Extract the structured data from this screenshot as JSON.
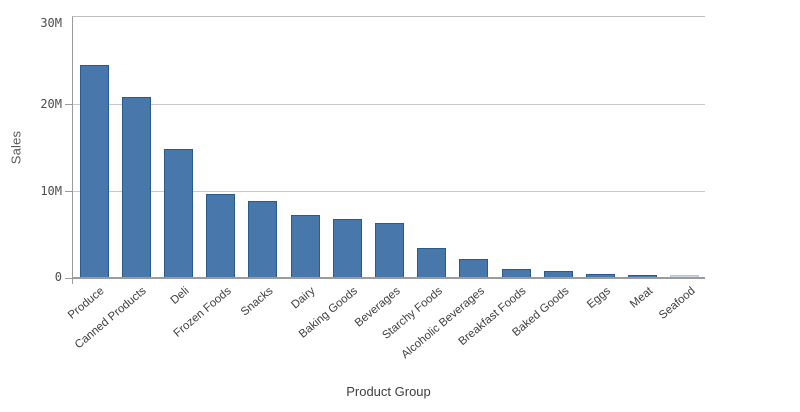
{
  "chart_data": {
    "type": "bar",
    "title": "",
    "xlabel": "Product Group",
    "ylabel": "Sales",
    "categories": [
      "Produce",
      "Canned Products",
      "Deli",
      "Frozen Foods",
      "Snacks",
      "Dairy",
      "Baking Goods",
      "Beverages",
      "Starchy Foods",
      "Alcoholic Beverages",
      "Breakfast Foods",
      "Baked Goods",
      "Eggs",
      "Meat",
      "Seafood"
    ],
    "values": [
      24.4,
      20.7,
      14.7,
      9.5,
      8.7,
      7.1,
      6.7,
      6.2,
      3.3,
      2.1,
      0.9,
      0.65,
      0.4,
      0.2,
      0.12
    ],
    "unit": "M",
    "ylim": [
      0,
      30
    ],
    "yticks": [
      {
        "value": 0,
        "label": "0"
      },
      {
        "value": 10,
        "label": "10M"
      },
      {
        "value": 20,
        "label": "20M"
      },
      {
        "value": 30,
        "label": "30M"
      }
    ],
    "grid": "on",
    "legend": "none",
    "bar_color": "#4878ab",
    "bar_border_color": "#2a5a8c",
    "muted_bar": {
      "index": 14,
      "fill": "#c9d6e4",
      "border": "#b4c6d9"
    },
    "grid_color": "#c9c9c9",
    "axis_color": "#9b9b9b"
  }
}
